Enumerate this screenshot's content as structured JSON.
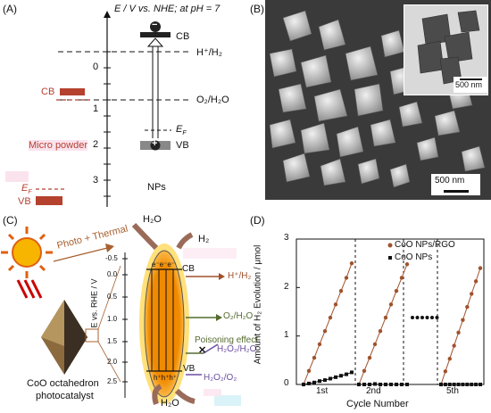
{
  "panels": {
    "a": "(A)",
    "b": "(B)",
    "c": "(C)",
    "d": "(D)"
  },
  "panel_a": {
    "axis_title": "E / V vs. NHE; at pH = 7",
    "ticks": [
      "0",
      "1",
      "2",
      "3"
    ],
    "cb_label_right": "CB",
    "vb_label_right": "VB",
    "h_label": "H⁺/H₂",
    "o_label": "O₂/H₂O",
    "ef_right": "E",
    "ef_right_sub": "F",
    "cb_label_left": "CB",
    "micro_label": "Micro powder",
    "ef_left": "E",
    "ef_left_sub": "F",
    "vb_label_left": "VB",
    "nps_label": "NPs",
    "minus": "−",
    "plus": "+",
    "colors": {
      "micro_band": "#b5412f",
      "np_band": "#222222",
      "np_vb": "#888888"
    }
  },
  "panel_b": {
    "scale_main": "500 nm",
    "scale_inset": "500 nm"
  },
  "panel_c": {
    "photo_thermal": "Photo + Thermal",
    "catalyst_line1": "CoO octahedron",
    "catalyst_line2": "photocatalyst",
    "axis": "E vs. RHE / V",
    "ticks": [
      "-0.5",
      "0.0",
      "0.5",
      "1.0",
      "1.5",
      "2.0",
      "2.5"
    ],
    "h2o_top": "H₂O",
    "h2": "H₂",
    "cb": "CB",
    "electrons": "e⁻e⁻e⁻",
    "h_label": "H⁺/H₂",
    "o_label": "O₂/H₂O",
    "poison": "Poisoning effect",
    "h2o2": "H₂O₂/H₂O",
    "vb": "VB",
    "holes": "h⁺h⁺h⁺",
    "h2o2_o2": "H₂O₂/O₂",
    "h2o_bottom": "H₂O",
    "cross": "✕"
  },
  "panel_d": {
    "y_label": "Amount of H₂ Evolution / μmol",
    "x_label": "Cycle Number",
    "x_ticks": [
      "1st",
      "2nd",
      "5th"
    ],
    "y_ticks": [
      "0",
      "1",
      "2",
      "3"
    ],
    "legend_1": "CoO NPs/RGO",
    "legend_2": "CoO NPs"
  },
  "chart_data": {
    "type": "scatter",
    "ylim": [
      0,
      3
    ],
    "xlabel": "Cycle Number",
    "ylabel": "Amount of H₂ Evolution / μmol",
    "series": [
      {
        "name": "CoO NPs/RGO",
        "color": "#a0522d",
        "segments": [
          [
            0.0,
            0.28,
            0.55,
            0.83,
            1.1,
            1.38,
            1.65,
            1.93,
            2.2,
            2.5
          ],
          [
            0.0,
            0.28,
            0.55,
            0.83,
            1.1,
            1.38,
            1.65,
            1.93,
            2.2,
            2.48
          ],
          [
            0.0,
            0.27,
            0.53,
            0.8,
            1.07,
            1.33,
            1.6,
            1.87,
            2.13,
            2.4
          ]
        ]
      },
      {
        "name": "CoO NPs",
        "color": "#111111",
        "segments": [
          [
            0.0,
            0.02,
            0.04,
            0.07,
            0.09,
            0.12,
            0.15,
            0.18,
            0.21,
            0.25
          ],
          [
            0.0,
            0.0,
            0.0,
            0.01,
            0.0,
            0.0,
            0.0,
            0.0,
            0.0,
            0.0
          ],
          [
            0.0,
            0.0,
            0.0,
            0.0,
            0.0,
            0.0,
            0.0,
            0.0,
            0.0,
            0.0
          ]
        ]
      }
    ],
    "break_marker_value": 1.38
  }
}
